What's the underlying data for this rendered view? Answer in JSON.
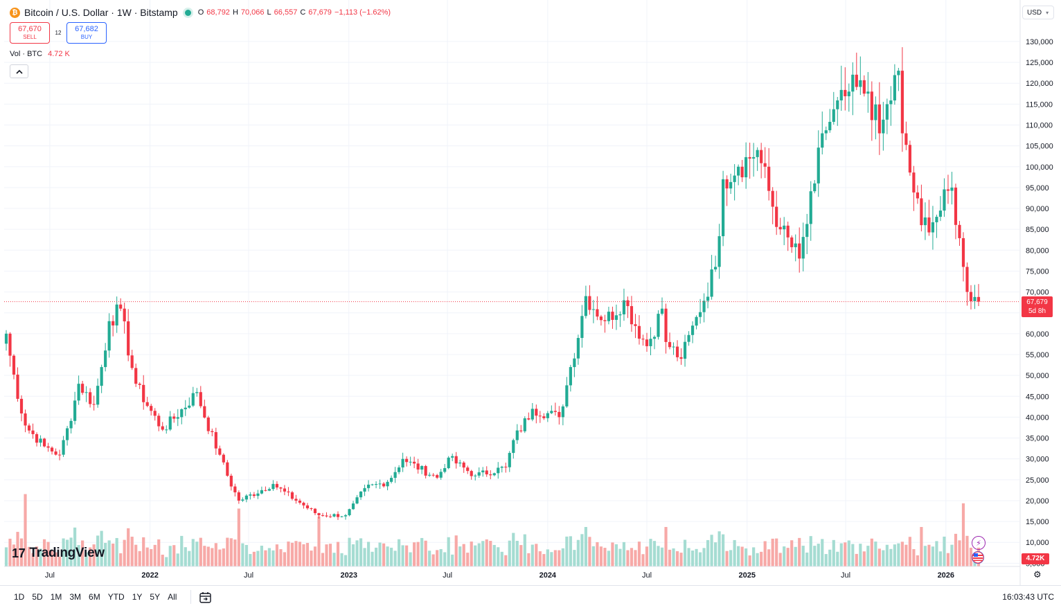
{
  "header": {
    "coin_icon": "₿",
    "title": "Bitcoin / U.S. Dollar · 1W · Bitstamp",
    "ohlc": [
      {
        "k": "O",
        "v": "68,792"
      },
      {
        "k": "H",
        "v": "70,066"
      },
      {
        "k": "L",
        "v": "66,557"
      },
      {
        "k": "C",
        "v": "67,679"
      }
    ],
    "change": "−1,113 (−1.62%)"
  },
  "trade": {
    "sell_price": "67,670",
    "sell_label": "SELL",
    "spread": "12",
    "buy_price": "67,682",
    "buy_label": "BUY"
  },
  "volume_legend": {
    "label": "Vol · BTC",
    "value": "4.72 K"
  },
  "currency": "USD",
  "price_tag": {
    "price": "67,679",
    "countdown": "5d 8h"
  },
  "volume_tag": "4.72K",
  "logo": {
    "mark": "17",
    "text": "TradingView"
  },
  "ranges": [
    "1D",
    "5D",
    "1M",
    "3M",
    "6M",
    "YTD",
    "1Y",
    "5Y",
    "All"
  ],
  "clock": "16:03:43 UTC",
  "icons": {
    "collapse": "chevron-up-icon",
    "calendar": "calendar-goto-icon",
    "settings": "gear-icon"
  },
  "colors": {
    "up": "#22ab94",
    "down": "#f23645",
    "vol_up": "#a5dcd2",
    "vol_down": "#f7a9a7",
    "grid": "#f0f3fa"
  },
  "chart_data": {
    "type": "candlestick",
    "interval": "1W",
    "y_axis": {
      "min": 0,
      "max": 130000,
      "scale": "linear",
      "side": "right",
      "ticks": [
        5000,
        10000,
        15000,
        20000,
        25000,
        30000,
        35000,
        40000,
        45000,
        50000,
        55000,
        60000,
        65000,
        70000,
        75000,
        80000,
        85000,
        90000,
        95000,
        100000,
        105000,
        110000,
        115000,
        120000,
        125000,
        130000
      ],
      "tick_labels": [
        "5,000",
        "10,000",
        "15,000",
        "20,000",
        "25,000",
        "30,000",
        "35,000",
        "40,000",
        "45,000",
        "50,000",
        "55,000",
        "60,000",
        "65,000",
        "70,000",
        "75,000",
        "80,000",
        "85,000",
        "90,000",
        "95,000",
        "100,000",
        "105,000",
        "110,000",
        "115,000",
        "120,000",
        "125,000",
        "130,000"
      ]
    },
    "x_axis": {
      "ticks": [
        {
          "date": "2021-07-01",
          "label": "Jul",
          "bold": false
        },
        {
          "date": "2022-01-01",
          "label": "2022",
          "bold": true
        },
        {
          "date": "2022-07-01",
          "label": "Jul",
          "bold": false
        },
        {
          "date": "2023-01-01",
          "label": "2023",
          "bold": true
        },
        {
          "date": "2023-07-01",
          "label": "Jul",
          "bold": false
        },
        {
          "date": "2024-01-01",
          "label": "2024",
          "bold": true
        },
        {
          "date": "2024-07-01",
          "label": "Jul",
          "bold": false
        },
        {
          "date": "2025-01-01",
          "label": "2025",
          "bold": true
        },
        {
          "date": "2025-07-01",
          "label": "Jul",
          "bold": false
        },
        {
          "date": "2026-01-01",
          "label": "2026",
          "bold": true
        }
      ]
    },
    "last_price": 67679,
    "last_price_line": "dotted",
    "grid": true,
    "price_keypoints": [
      [
        "2021-04-12",
        60000
      ],
      [
        "2021-05-17",
        38000
      ],
      [
        "2021-06-21",
        33000
      ],
      [
        "2021-07-19",
        31000
      ],
      [
        "2021-08-23",
        48000
      ],
      [
        "2021-09-20",
        43000
      ],
      [
        "2021-10-18",
        63000
      ],
      [
        "2021-11-08",
        66000
      ],
      [
        "2021-12-06",
        48000
      ],
      [
        "2022-01-24",
        37000
      ],
      [
        "2022-03-28",
        46000
      ],
      [
        "2022-05-09",
        31000
      ],
      [
        "2022-06-13",
        20000
      ],
      [
        "2022-08-15",
        24000
      ],
      [
        "2022-10-03",
        19500
      ],
      [
        "2022-11-07",
        16500
      ],
      [
        "2022-12-26",
        16500
      ],
      [
        "2023-01-30",
        23000
      ],
      [
        "2023-03-13",
        24500
      ],
      [
        "2023-04-10",
        30000
      ],
      [
        "2023-06-12",
        25500
      ],
      [
        "2023-07-03",
        30300
      ],
      [
        "2023-08-21",
        26000
      ],
      [
        "2023-10-16",
        28000
      ],
      [
        "2023-10-30",
        34500
      ],
      [
        "2023-12-04",
        42000
      ],
      [
        "2024-01-22",
        40000
      ],
      [
        "2024-02-12",
        52000
      ],
      [
        "2024-03-11",
        69000
      ],
      [
        "2024-04-15",
        63000
      ],
      [
        "2024-05-20",
        68000
      ],
      [
        "2024-07-01",
        57000
      ],
      [
        "2024-07-29",
        66000
      ],
      [
        "2024-08-05",
        58000
      ],
      [
        "2024-09-02",
        54000
      ],
      [
        "2024-09-30",
        64000
      ],
      [
        "2024-11-04",
        76000
      ],
      [
        "2024-11-18",
        97000
      ],
      [
        "2024-12-16",
        100000
      ],
      [
        "2025-01-20",
        104000
      ],
      [
        "2025-03-03",
        85000
      ],
      [
        "2025-04-07",
        78000
      ],
      [
        "2025-05-05",
        96000
      ],
      [
        "2025-05-19",
        108000
      ],
      [
        "2025-07-07",
        118000
      ],
      [
        "2025-08-11",
        118000
      ],
      [
        "2025-09-01",
        108000
      ],
      [
        "2025-10-06",
        123000
      ],
      [
        "2025-10-13",
        108000
      ],
      [
        "2025-11-17",
        86000
      ],
      [
        "2025-12-15",
        88000
      ],
      [
        "2026-01-12",
        95000
      ],
      [
        "2026-02-02",
        76000
      ],
      [
        "2026-02-09",
        70000
      ],
      [
        "2026-02-23",
        68792
      ],
      [
        "2026-03-02",
        67679
      ]
    ],
    "volume_spikes": [
      [
        "2021-05-17",
        0.55
      ],
      [
        "2022-06-13",
        0.44
      ],
      [
        "2022-11-07",
        0.38
      ],
      [
        "2024-03-11",
        0.3
      ],
      [
        "2024-08-05",
        0.3
      ],
      [
        "2025-11-17",
        0.3
      ],
      [
        "2026-02-02",
        0.48
      ]
    ]
  }
}
